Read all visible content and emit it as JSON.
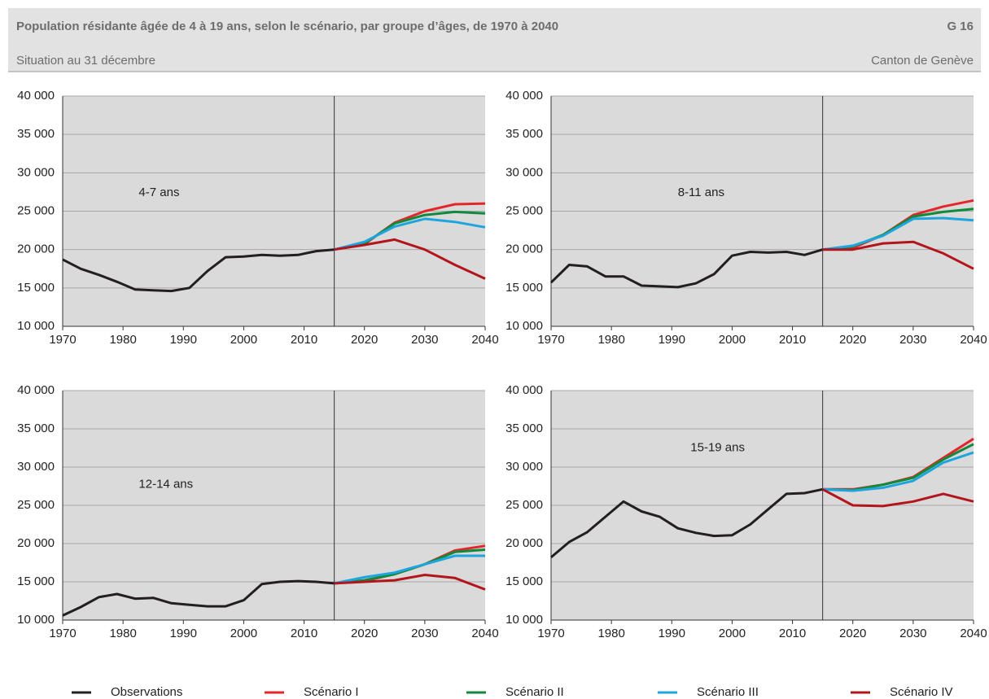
{
  "header": {
    "title": "Population résidante âgée de 4 à 19 ans, selon le scénario, par groupe d’âges, de 1970 à 2040",
    "code": "G 16",
    "subtitle": "Situation au 31 décembre",
    "region": "Canton de Genève"
  },
  "chart_data": [
    {
      "type": "line",
      "title": "4-7 ans",
      "xlim": [
        1970,
        2040
      ],
      "ylim": [
        10000,
        40000
      ],
      "xticks": [
        1970,
        1980,
        1990,
        2000,
        2010,
        2020,
        2030,
        2040
      ],
      "yticks": [
        {
          "value": 10000,
          "label": "10 000"
        },
        {
          "value": 15000,
          "label": "15 000"
        },
        {
          "value": 20000,
          "label": "20 000"
        },
        {
          "value": 25000,
          "label": "25 000"
        },
        {
          "value": 30000,
          "label": "30 000"
        },
        {
          "value": 35000,
          "label": "35 000"
        },
        {
          "value": 40000,
          "label": "40 000"
        }
      ],
      "vline": 2015,
      "grid": true,
      "series": [
        {
          "name": "Observations",
          "color": "#231f20",
          "x": [
            1970,
            1973,
            1976,
            1979,
            1982,
            1985,
            1988,
            1991,
            1994,
            1997,
            2000,
            2003,
            2006,
            2009,
            2012,
            2015
          ],
          "values": [
            18700,
            17500,
            16700,
            15800,
            14800,
            14700,
            14600,
            15000,
            17200,
            19000,
            19100,
            19300,
            19200,
            19300,
            19800,
            20000
          ]
        },
        {
          "name": "Scénario I",
          "color": "#e3262b",
          "x": [
            2015,
            2020,
            2025,
            2030,
            2035,
            2040
          ],
          "values": [
            20000,
            20700,
            23500,
            25000,
            25900,
            26000
          ]
        },
        {
          "name": "Scénario II",
          "color": "#128a3d",
          "x": [
            2015,
            2020,
            2025,
            2030,
            2035,
            2040
          ],
          "values": [
            20000,
            20800,
            23400,
            24500,
            24900,
            24700
          ]
        },
        {
          "name": "Scénario III",
          "color": "#1ea5de",
          "x": [
            2015,
            2020,
            2025,
            2030,
            2035,
            2040
          ],
          "values": [
            20000,
            21000,
            23000,
            24000,
            23600,
            22900
          ]
        },
        {
          "name": "Scénario IV",
          "color": "#b3151d",
          "x": [
            2015,
            2020,
            2025,
            2030,
            2035,
            2040
          ],
          "values": [
            20000,
            20600,
            21300,
            20000,
            18000,
            16200
          ]
        }
      ]
    },
    {
      "type": "line",
      "title": "8-11 ans",
      "xlim": [
        1970,
        2040
      ],
      "ylim": [
        10000,
        40000
      ],
      "xticks": [
        1970,
        1980,
        1990,
        2000,
        2010,
        2020,
        2030,
        2040
      ],
      "yticks": [
        {
          "value": 10000,
          "label": "10 000"
        },
        {
          "value": 15000,
          "label": "15 000"
        },
        {
          "value": 20000,
          "label": "20 000"
        },
        {
          "value": 25000,
          "label": "25 000"
        },
        {
          "value": 30000,
          "label": "30 000"
        },
        {
          "value": 35000,
          "label": "35 000"
        },
        {
          "value": 40000,
          "label": "40 000"
        }
      ],
      "vline": 2015,
      "grid": true,
      "series": [
        {
          "name": "Observations",
          "color": "#231f20",
          "x": [
            1970,
            1973,
            1976,
            1979,
            1982,
            1985,
            1988,
            1991,
            1994,
            1997,
            2000,
            2003,
            2006,
            2009,
            2012,
            2015
          ],
          "values": [
            15700,
            18000,
            17800,
            16500,
            16500,
            15300,
            15200,
            15100,
            15600,
            16800,
            19200,
            19700,
            19600,
            19700,
            19300,
            20000
          ]
        },
        {
          "name": "Scénario I",
          "color": "#e3262b",
          "x": [
            2015,
            2020,
            2025,
            2030,
            2035,
            2040
          ],
          "values": [
            20000,
            20200,
            21900,
            24500,
            25600,
            26400
          ]
        },
        {
          "name": "Scénario II",
          "color": "#128a3d",
          "x": [
            2015,
            2020,
            2025,
            2030,
            2035,
            2040
          ],
          "values": [
            20000,
            20400,
            21900,
            24300,
            24900,
            25300
          ]
        },
        {
          "name": "Scénario III",
          "color": "#1ea5de",
          "x": [
            2015,
            2020,
            2025,
            2030,
            2035,
            2040
          ],
          "values": [
            20000,
            20500,
            21800,
            24000,
            24100,
            23800
          ]
        },
        {
          "name": "Scénario IV",
          "color": "#b3151d",
          "x": [
            2015,
            2020,
            2025,
            2030,
            2035,
            2040
          ],
          "values": [
            20000,
            20000,
            20800,
            21000,
            19500,
            17500
          ]
        }
      ]
    },
    {
      "type": "line",
      "title": "12-14 ans",
      "xlim": [
        1970,
        2040
      ],
      "ylim": [
        10000,
        40000
      ],
      "xticks": [
        1970,
        1980,
        1990,
        2000,
        2010,
        2020,
        2030,
        2040
      ],
      "yticks": [
        {
          "value": 10000,
          "label": "10 000"
        },
        {
          "value": 15000,
          "label": "15 000"
        },
        {
          "value": 20000,
          "label": "20 000"
        },
        {
          "value": 25000,
          "label": "25 000"
        },
        {
          "value": 30000,
          "label": "30 000"
        },
        {
          "value": 35000,
          "label": "35 000"
        },
        {
          "value": 40000,
          "label": "40 000"
        }
      ],
      "vline": 2015,
      "grid": true,
      "series": [
        {
          "name": "Observations",
          "color": "#231f20",
          "x": [
            1970,
            1973,
            1976,
            1979,
            1982,
            1985,
            1988,
            1991,
            1994,
            1997,
            2000,
            2003,
            2006,
            2009,
            2012,
            2015
          ],
          "values": [
            10600,
            11700,
            13000,
            13400,
            12800,
            12900,
            12200,
            12000,
            11800,
            11800,
            12600,
            14700,
            15000,
            15100,
            15000,
            14800
          ]
        },
        {
          "name": "Scénario I",
          "color": "#e3262b",
          "x": [
            2015,
            2020,
            2025,
            2030,
            2035,
            2040
          ],
          "values": [
            14800,
            15100,
            16000,
            17300,
            19100,
            19700
          ]
        },
        {
          "name": "Scénario II",
          "color": "#128a3d",
          "x": [
            2015,
            2020,
            2025,
            2030,
            2035,
            2040
          ],
          "values": [
            14800,
            15200,
            16000,
            17300,
            18900,
            19200
          ]
        },
        {
          "name": "Scénario III",
          "color": "#1ea5de",
          "x": [
            2015,
            2020,
            2025,
            2030,
            2035,
            2040
          ],
          "values": [
            14800,
            15600,
            16200,
            17300,
            18400,
            18400
          ]
        },
        {
          "name": "Scénario IV",
          "color": "#b3151d",
          "x": [
            2015,
            2020,
            2025,
            2030,
            2035,
            2040
          ],
          "values": [
            14800,
            15000,
            15200,
            15900,
            15500,
            14000
          ]
        }
      ]
    },
    {
      "type": "line",
      "title": "15-19 ans",
      "xlim": [
        1970,
        2040
      ],
      "ylim": [
        10000,
        40000
      ],
      "xticks": [
        1970,
        1980,
        1990,
        2000,
        2010,
        2020,
        2030,
        2040
      ],
      "yticks": [
        {
          "value": 10000,
          "label": "10 000"
        },
        {
          "value": 15000,
          "label": "15 000"
        },
        {
          "value": 20000,
          "label": "20 000"
        },
        {
          "value": 25000,
          "label": "25 000"
        },
        {
          "value": 30000,
          "label": "30 000"
        },
        {
          "value": 35000,
          "label": "35 000"
        },
        {
          "value": 40000,
          "label": "40 000"
        }
      ],
      "vline": 2015,
      "grid": true,
      "series": [
        {
          "name": "Observations",
          "color": "#231f20",
          "x": [
            1970,
            1973,
            1976,
            1979,
            1982,
            1985,
            1988,
            1991,
            1994,
            1997,
            2000,
            2003,
            2006,
            2009,
            2012,
            2015
          ],
          "values": [
            18200,
            20200,
            21500,
            23500,
            25500,
            24200,
            23500,
            22000,
            21400,
            21000,
            21100,
            22500,
            24500,
            26500,
            26600,
            27100
          ]
        },
        {
          "name": "Scénario I",
          "color": "#e3262b",
          "x": [
            2015,
            2020,
            2025,
            2030,
            2035,
            2040
          ],
          "values": [
            27100,
            27100,
            27700,
            28700,
            31200,
            33700
          ]
        },
        {
          "name": "Scénario II",
          "color": "#128a3d",
          "x": [
            2015,
            2020,
            2025,
            2030,
            2035,
            2040
          ],
          "values": [
            27100,
            27000,
            27700,
            28600,
            31000,
            33000
          ]
        },
        {
          "name": "Scénario III",
          "color": "#1ea5de",
          "x": [
            2015,
            2020,
            2025,
            2030,
            2035,
            2040
          ],
          "values": [
            27100,
            26900,
            27300,
            28200,
            30600,
            31900
          ]
        },
        {
          "name": "Scénario IV",
          "color": "#b3151d",
          "x": [
            2015,
            2020,
            2025,
            2030,
            2035,
            2040
          ],
          "values": [
            27100,
            25000,
            24900,
            25500,
            26500,
            25500
          ]
        }
      ]
    }
  ]
}
